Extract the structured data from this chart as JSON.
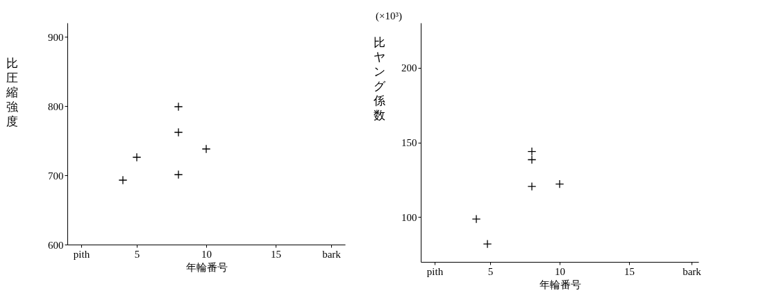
{
  "chart_data": [
    {
      "type": "scatter",
      "xlabel": "年輪番号",
      "ylabel": "比圧縮強度",
      "x": [
        4,
        5,
        8,
        8,
        8,
        10
      ],
      "xlim": [
        0,
        20
      ],
      "xticks": [
        {
          "value": 1,
          "label": "pith"
        },
        5,
        10,
        15,
        {
          "value": 19,
          "label": "bark"
        }
      ],
      "ylim": [
        600,
        920
      ],
      "yticks": [
        600,
        700,
        800,
        900
      ],
      "series": [
        {
          "color": "#000000",
          "values": [
            693,
            726,
            799,
            762,
            701,
            738
          ]
        }
      ],
      "marker": "cross",
      "grid": false
    },
    {
      "type": "scatter",
      "xlabel": "年輪番号",
      "ylabel": "比ヤング係数",
      "annotations": [
        "(×10³)"
      ],
      "x": [
        4,
        4.8,
        8,
        8,
        8,
        10
      ],
      "xlim": [
        0,
        20
      ],
      "xticks": [
        {
          "value": 1,
          "label": "pith"
        },
        5,
        10,
        15,
        {
          "value": 19.5,
          "label": "bark"
        }
      ],
      "ylim": [
        70,
        230
      ],
      "yticks": [
        100,
        150,
        200
      ],
      "series": [
        {
          "color": "#000000",
          "values": [
            98.7,
            82,
            143.9,
            138.4,
            120.5,
            122.1
          ]
        }
      ],
      "marker": "cross",
      "grid": false
    }
  ]
}
